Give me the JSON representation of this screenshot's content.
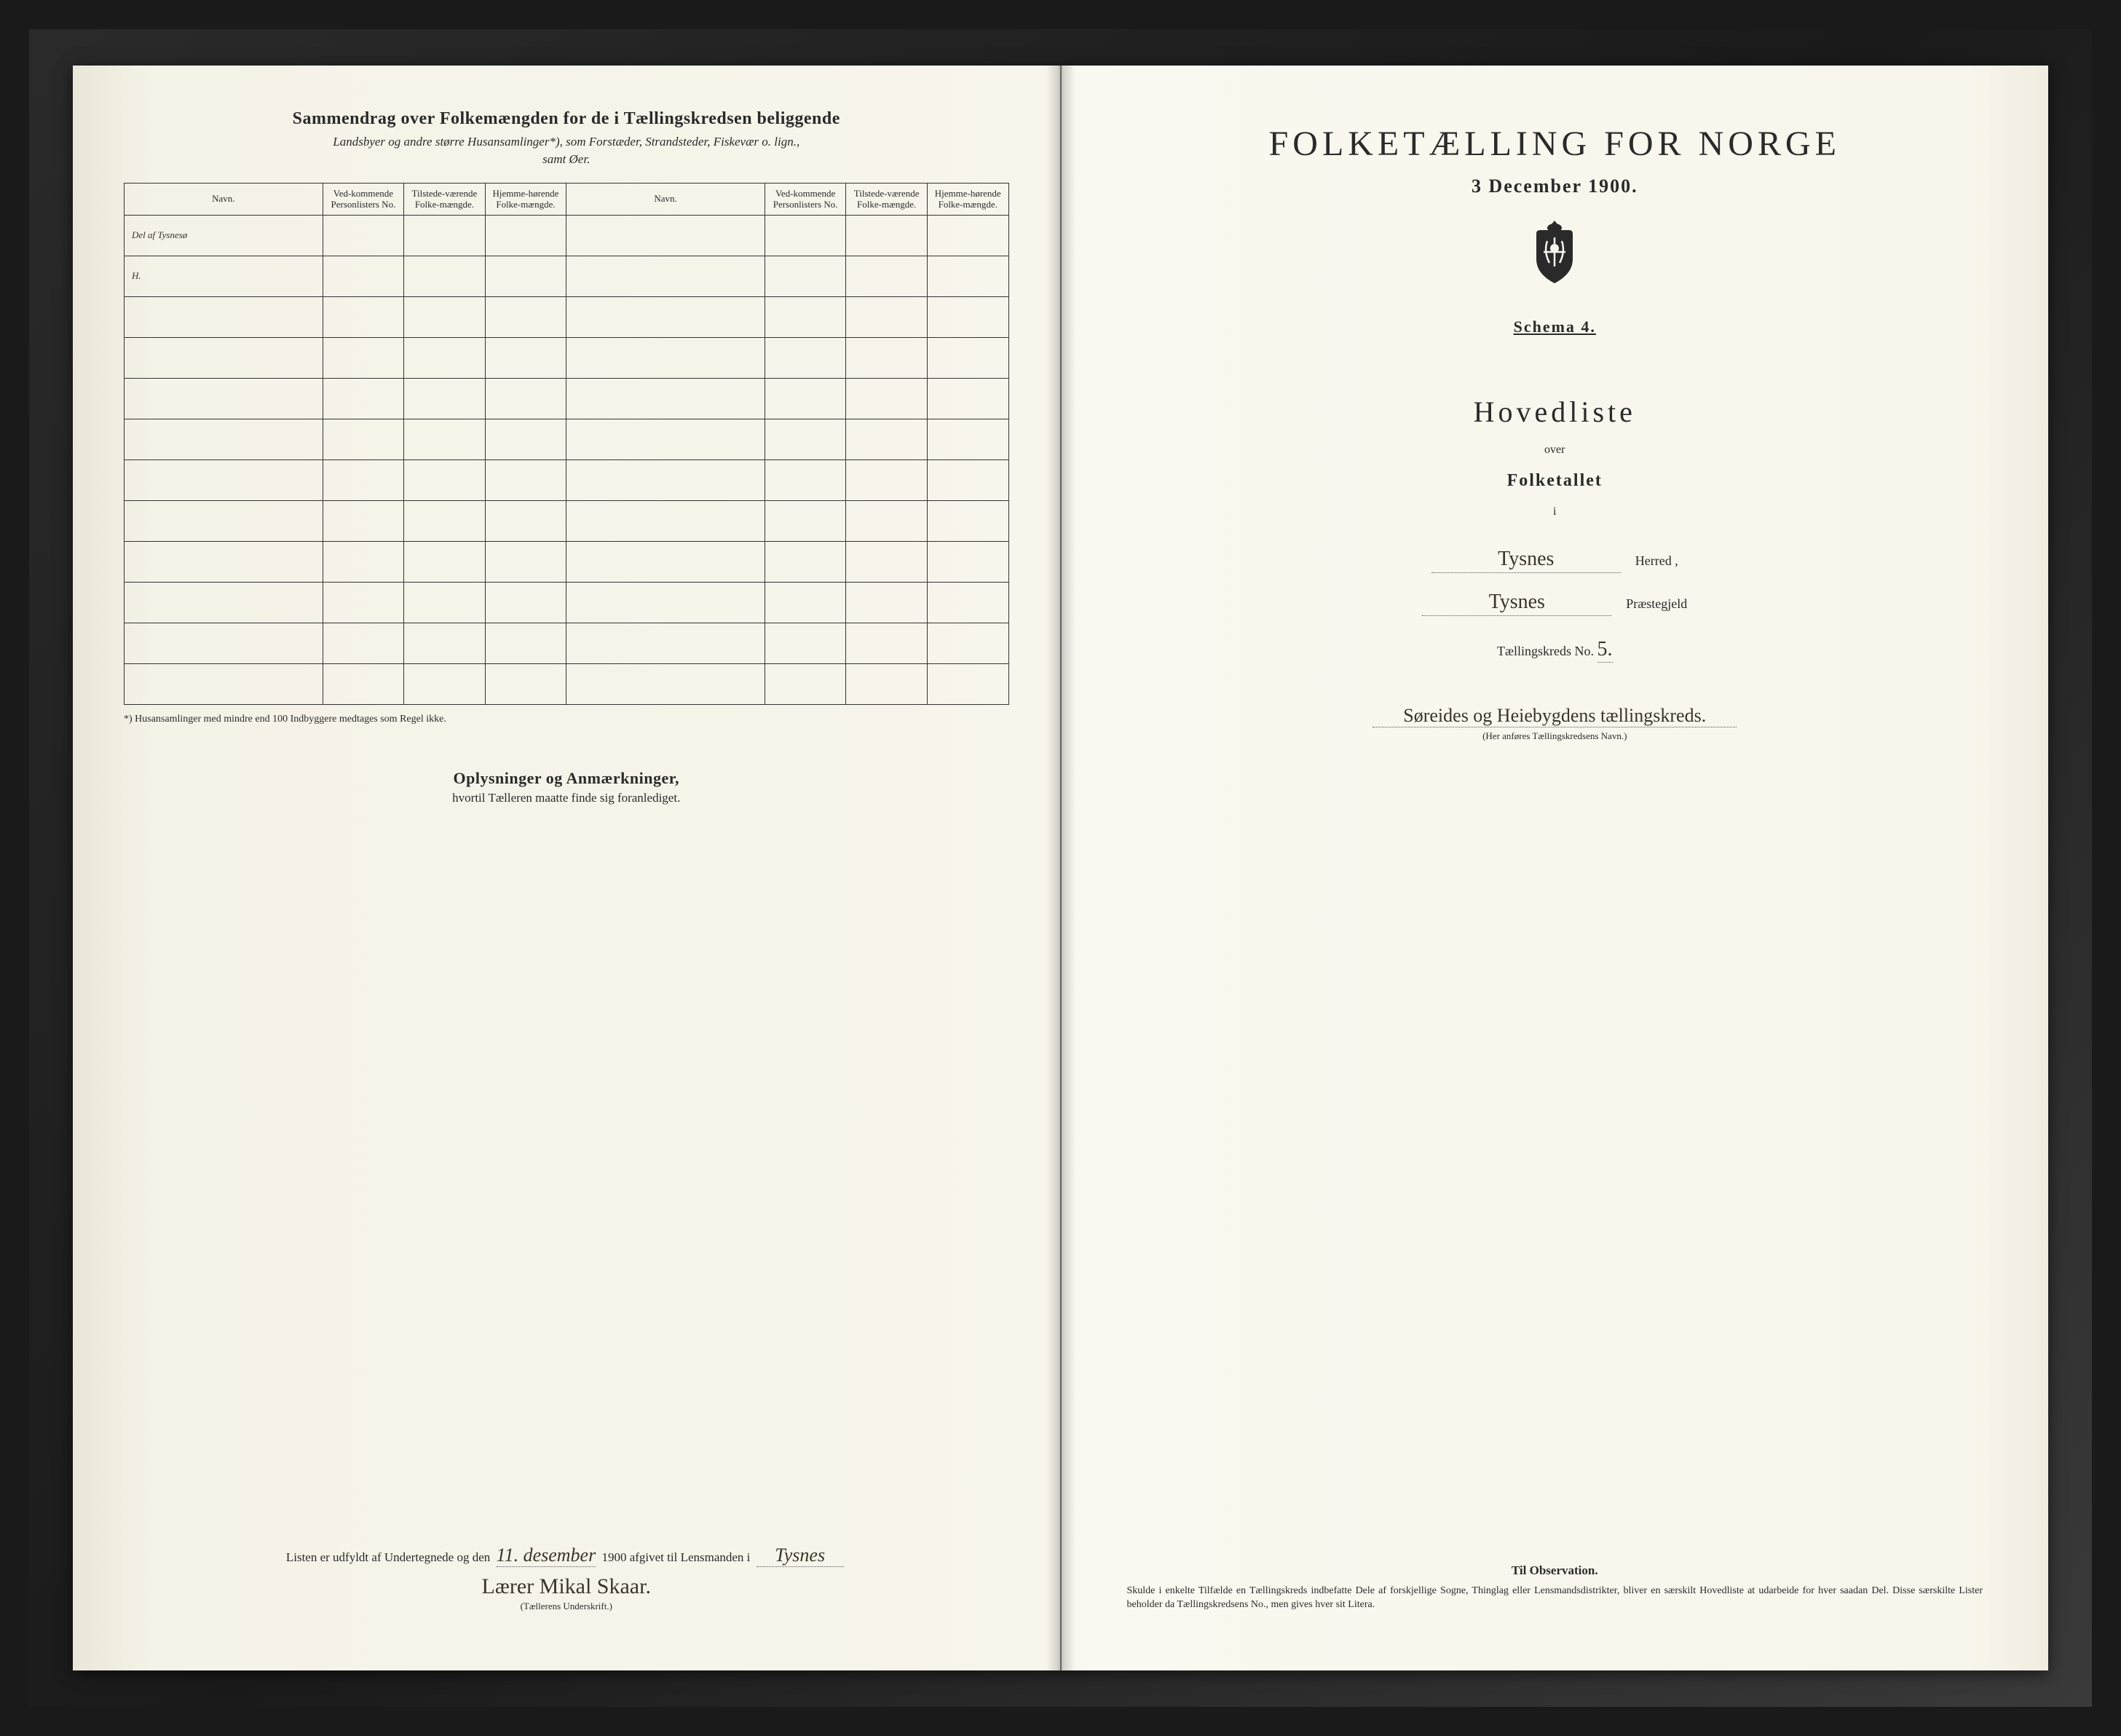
{
  "colors": {
    "page_bg": "#f8f5ec",
    "frame_bg": "#1a1a1a",
    "text": "#2a2a2a",
    "handwriting": "#3a3528",
    "border": "#333333"
  },
  "left_page": {
    "header_title": "Sammendrag over Folkemængden for de i Tællingskredsen beliggende",
    "header_sub1": "Landsbyer og andre større Husansamlinger*), som Forstæder, Strandsteder, Fiskevær o. lign.,",
    "header_sub2": "samt Øer.",
    "table": {
      "columns": [
        "Navn.",
        "Ved-kommende Personlisters No.",
        "Tilstede-værende Folke-mængde.",
        "Hjemme-hørende Folke-mængde.",
        "Navn.",
        "Ved-kommende Personlisters No.",
        "Tilstede-værende Folke-mængde.",
        "Hjemme-hørende Folke-mængde."
      ],
      "rows": [
        [
          "Del af Tysnesø",
          "",
          "",
          "",
          "",
          "",
          "",
          ""
        ],
        [
          "H.",
          "",
          "",
          "",
          "",
          "",
          "",
          ""
        ],
        [
          "",
          "",
          "",
          "",
          "",
          "",
          "",
          ""
        ],
        [
          "",
          "",
          "",
          "",
          "",
          "",
          "",
          ""
        ],
        [
          "",
          "",
          "",
          "",
          "",
          "",
          "",
          ""
        ],
        [
          "",
          "",
          "",
          "",
          "",
          "",
          "",
          ""
        ],
        [
          "",
          "",
          "",
          "",
          "",
          "",
          "",
          ""
        ],
        [
          "",
          "",
          "",
          "",
          "",
          "",
          "",
          ""
        ],
        [
          "",
          "",
          "",
          "",
          "",
          "",
          "",
          ""
        ],
        [
          "",
          "",
          "",
          "",
          "",
          "",
          "",
          ""
        ],
        [
          "",
          "",
          "",
          "",
          "",
          "",
          "",
          ""
        ],
        [
          "",
          "",
          "",
          "",
          "",
          "",
          "",
          ""
        ]
      ]
    },
    "footnote": "*) Husansamlinger med mindre end 100 Indbyggere medtages som Regel ikke.",
    "oplys_title": "Oplysninger og Anmærkninger,",
    "oplys_sub": "hvortil Tælleren maatte finde sig foranlediget.",
    "signature": {
      "prefix": "Listen er udfyldt af Undertegnede og den",
      "date_hw": "11. desember",
      "year": "1900",
      "mid": "afgivet til Lensmanden i",
      "place_hw": "Tysnes",
      "name_hw": "Lærer Mikal Skaar.",
      "caption": "(Tællerens Underskrift.)"
    }
  },
  "right_page": {
    "main_title": "FOLKETÆLLING FOR NORGE",
    "date": "3 December 1900.",
    "schema": "Schema 4.",
    "hovedliste": "Hovedliste",
    "over": "over",
    "folketallet": "Folketallet",
    "i": "i",
    "herred_value": "Tysnes",
    "herred_label": "Herred ,",
    "prgjeld_value": "Tysnes",
    "prgjeld_label": "Præstegjeld",
    "kreds_label": "Tællingskreds No.",
    "kreds_no": "5.",
    "kreds_name": "Søreides og Heiebygdens tællingskreds.",
    "kreds_caption": "(Her anføres Tællingskredsens Navn.)",
    "obs_title": "Til Observation.",
    "obs_text": "Skulde i enkelte Tilfælde en Tællingskreds indbefatte Dele af forskjellige Sogne, Thinglag eller Lensmandsdistrikter, bliver en særskilt Hovedliste at udarbeide for hver saadan Del. Disse særskilte Lister beholder da Tællingskredsens No., men gives hver sit Litera."
  }
}
